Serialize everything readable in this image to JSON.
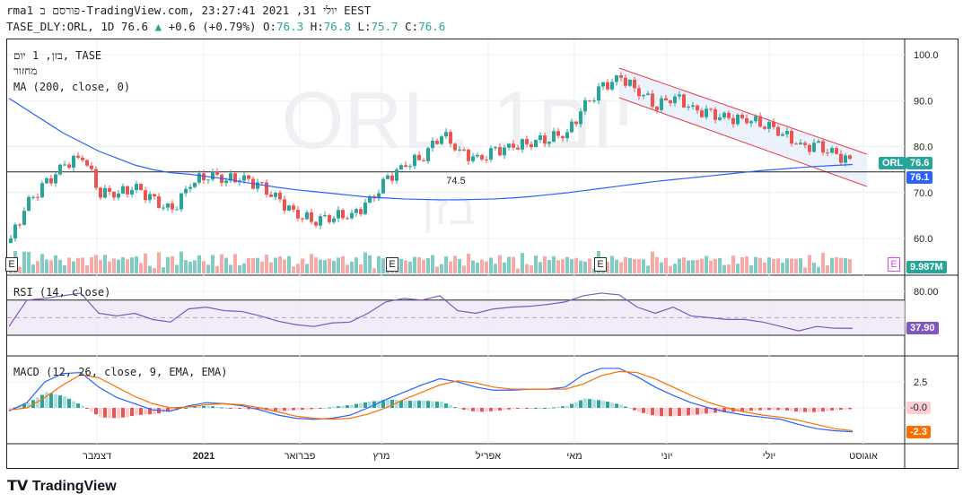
{
  "header": {
    "line1": "rma1 פורסם ב-TradingView.com, יולי  31, 2021 23:27:41 EEST",
    "symbol": "TASE_DLY:ORL, 1D 76.6",
    "change": "+0.6 (+0.79%)",
    "o_label": "O:",
    "o": "76.3",
    "h_label": "H:",
    "h": "76.8",
    "l_label": "L:",
    "l": "75.7",
    "c_label": "C:",
    "c": "76.6"
  },
  "legend": {
    "main": "בזן, 1 יום, TASE",
    "volume": "מחזור",
    "ma": "MA (200, close, 0)",
    "rsi": "RSI (14, close)",
    "macd": "MACD (12, 26, close, 9, EMA, EMA)"
  },
  "watermark": {
    "symbol": "ORL, 1יום",
    "name": "בזן"
  },
  "tags": {
    "symbol": "ORL",
    "price": "76.6",
    "ma": "76.1",
    "volume": "9.987M",
    "rsi": "37.90",
    "macd_hist": "-0.0",
    "macd": "-2.3",
    "earnings": "E"
  },
  "annotation": "74.5",
  "footer": {
    "brand": "TradingView"
  },
  "colors": {
    "up": "#26a69a",
    "down": "#ef5350",
    "ma": "#2962ff",
    "rsi": "#7e57c2",
    "signal": "#ff6d00",
    "channel": "#f23645"
  },
  "chart_data": {
    "type": "candlestick",
    "price_axis": {
      "ticks": [
        "100.0",
        "90.0",
        "80.0",
        "70.0",
        "60.0"
      ],
      "range": [
        57,
        101
      ]
    },
    "x_ticks": [
      "דצמבר",
      "2021",
      "פברואר",
      "מרץ",
      "אפריל",
      "מאי",
      "יוני",
      "יולי",
      "אוגוסט"
    ],
    "weekly_close": [
      60,
      68,
      72,
      76,
      78,
      70,
      70,
      71,
      68,
      66,
      72,
      74,
      73,
      73,
      71,
      68,
      65,
      64,
      65,
      65,
      68,
      73,
      76,
      78,
      83,
      79,
      77,
      79,
      80,
      81,
      82,
      83,
      89,
      93,
      95,
      92,
      89,
      91,
      88,
      87,
      86,
      86,
      85,
      83,
      80,
      80,
      78,
      76.6
    ],
    "ma200": [
      90.5,
      88,
      85.5,
      83,
      81,
      79,
      77.5,
      76,
      75,
      74.3,
      74,
      73.5,
      73,
      72.3,
      71.7,
      71.1,
      70.6,
      70.2,
      69.8,
      69.4,
      69,
      68.8,
      68.6,
      68.5,
      68.4,
      68.4,
      68.5,
      68.6,
      68.8,
      69.1,
      69.5,
      69.9,
      70.4,
      70.9,
      71.4,
      71.9,
      72.4,
      72.8,
      73.2,
      73.6,
      74,
      74.4,
      74.8,
      75.1,
      75.4,
      75.7,
      75.9,
      76.1
    ],
    "horizontal_line": 74.5,
    "rsi": {
      "ticks": [
        "80.00"
      ],
      "upper": 70,
      "lower": 30,
      "values": [
        40,
        70,
        72,
        75,
        78,
        55,
        52,
        55,
        48,
        45,
        60,
        62,
        58,
        57,
        52,
        46,
        42,
        40,
        44,
        45,
        55,
        68,
        72,
        70,
        75,
        58,
        55,
        60,
        62,
        63,
        65,
        68,
        75,
        78,
        76,
        62,
        55,
        62,
        52,
        50,
        48,
        48,
        45,
        40,
        35,
        40,
        38,
        37.9
      ]
    },
    "macd": {
      "ticks": [
        "2.5"
      ],
      "macd": [
        -0.3,
        0.5,
        2.5,
        3.3,
        3.4,
        2,
        1,
        0.4,
        -0.2,
        -0.3,
        0.2,
        0.5,
        0.4,
        0.2,
        -0.2,
        -0.7,
        -1,
        -1.1,
        -1,
        -0.7,
        0,
        0.8,
        1.5,
        2.2,
        2.8,
        2.5,
        2,
        1.7,
        1.7,
        1.8,
        1.8,
        2,
        3.2,
        3.8,
        3.8,
        3,
        2,
        1.2,
        0.5,
        0,
        -0.4,
        -0.7,
        -0.9,
        -1.1,
        -1.6,
        -2,
        -2.2,
        -2.3
      ],
      "signal": [
        -0.2,
        0,
        1,
        2.2,
        3.2,
        2.9,
        2,
        1.1,
        0.4,
        0,
        0.1,
        0.3,
        0.4,
        0.3,
        0,
        -0.4,
        -0.8,
        -1,
        -1.1,
        -1,
        -0.6,
        0,
        0.8,
        1.5,
        2.2,
        2.6,
        2.4,
        2,
        1.8,
        1.8,
        1.8,
        1.8,
        2.3,
        3.1,
        3.5,
        3.4,
        2.8,
        2,
        1.2,
        0.5,
        0,
        -0.4,
        -0.7,
        -0.9,
        -1.2,
        -1.6,
        -2,
        -2.2
      ]
    }
  }
}
